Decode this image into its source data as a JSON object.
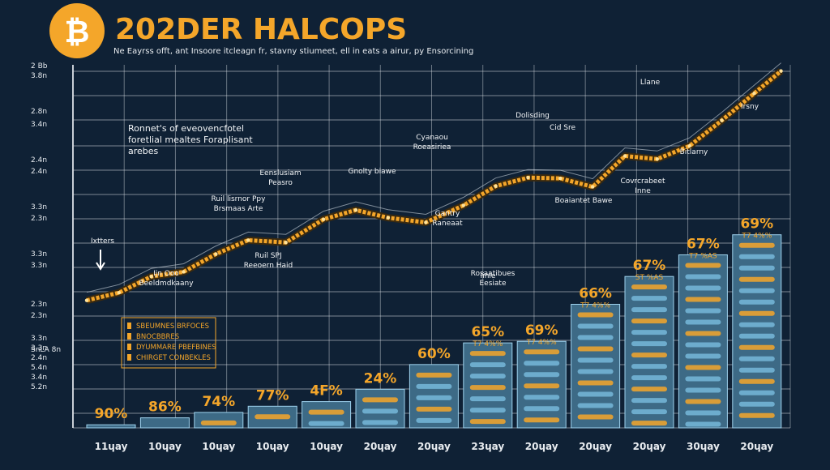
{
  "header": {
    "logo_glyph": "₿",
    "title": "202DER HALCOPS",
    "subtitle": "Ne Eayrss offt, ant Insoore itcleagn fr, stavny stiumeet, ell in eats a airur, py Ensorcining"
  },
  "colors": {
    "background": "#0f2135",
    "accent": "#f4a62a",
    "bar_fill": "#3d6a86",
    "bar_highlight": "#7ec3e4",
    "grid": "#d8dde3"
  },
  "chart_data": {
    "type": "bar",
    "title": "202DER HALCOPS",
    "categories": [
      "11ɥay",
      "10ɥay",
      "10ɥay",
      "10ɥay",
      "10ɥay",
      "20ɥay",
      "20ɥay",
      "23ɥay",
      "20ɥay",
      "20ɥay",
      "20ɥay",
      "30ɥay",
      "20ɥay"
    ],
    "series": [
      {
        "type": "bar",
        "values": [
          4,
          13,
          20,
          28,
          34,
          50,
          82,
          110,
          112,
          160,
          196,
          224,
          250
        ],
        "data_labels": [
          "90%",
          "86%",
          "74%",
          "77%",
          "4F%",
          "24%",
          "60%",
          "65%",
          "69%",
          "66%",
          "67%",
          "67%",
          "69%"
        ],
        "sub_labels": [
          "",
          "",
          "",
          "",
          "",
          "",
          "",
          "T7 4%%",
          "T7 4%%",
          "T7 4%%",
          "ST %AS",
          "T7 %AS",
          "T7 4%%"
        ]
      },
      {
        "type": "line",
        "x": [
          0.0,
          0.6,
          1.2,
          1.8,
          2.4,
          3.0,
          3.7,
          4.4,
          5.0,
          5.6,
          6.3,
          7.0,
          7.6,
          8.2,
          8.8,
          9.4,
          10.0,
          10.6,
          11.2,
          11.8,
          12.4,
          12.9
        ],
        "values": [
          165,
          175,
          196,
          202,
          225,
          243,
          240,
          270,
          282,
          272,
          266,
          288,
          313,
          324,
          323,
          312,
          352,
          348,
          365,
          398,
          433,
          462
        ]
      }
    ],
    "ytick_labels": [
      "2 Bb",
      "3.8n",
      "2.8n",
      "3.4n",
      "2.4n",
      "2.4n",
      "3.3n",
      "2.3n",
      "3.3n",
      "3.3n",
      "2.3n",
      "2.3n",
      "3.3n",
      "3.3n",
      "2.4n",
      "5.4n",
      "3.4n",
      "5.2n",
      "SnLA 8n"
    ],
    "legend": {
      "placement": "bottom-left",
      "items": [
        "SBEUMNES BRFOCES",
        "BNOCBBRES",
        "DYUMMARE PBEFBINES",
        "CHIRGET CONBEKLES"
      ]
    },
    "annotations": [
      "Ronnet's of eveovencfotel foretlial mealtes Foraplisant arebes",
      "Ixtters",
      "Ijn Ooo Beeldmdkaany",
      "Ruil lisrnor Ppy Brsmaas Arte",
      "Ruil SPJ Reeoern Haid",
      "Eenslusiam Peasro",
      "Gnolty biawe",
      "Cyanaou Roeasiriea",
      "Gantry Raneaat",
      "Dolisding",
      "Cid Sre",
      "Rosaatibues Eesiate",
      "Iinie",
      "Llane",
      "Bitlarny",
      "Boaiantet Bawe",
      "Covrcrabeet Inne",
      "Irsny"
    ]
  }
}
